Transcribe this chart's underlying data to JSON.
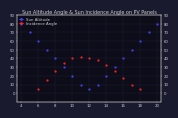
{
  "title": "Sun Altitude Angle & Sun Incidence Angle on PV Panels",
  "background_color": "#1a1a2e",
  "plot_bg_color": "#0d0d1a",
  "grid_color": "#444466",
  "altitude_color": "#4444ff",
  "incidence_color": "#ff2222",
  "text_color": "#cccccc",
  "ylim": [
    -10,
    90
  ],
  "xlim": [
    3.5,
    20.5
  ],
  "hours": [
    4,
    5,
    6,
    7,
    8,
    9,
    10,
    11,
    12,
    13,
    14,
    15,
    16,
    17,
    18,
    19,
    20
  ],
  "altitude_values": [
    80,
    70,
    60,
    50,
    40,
    30,
    20,
    10,
    5,
    10,
    20,
    30,
    40,
    50,
    60,
    70,
    80
  ],
  "incidence_values": [
    null,
    null,
    5,
    15,
    25,
    35,
    40,
    42,
    40,
    38,
    32,
    25,
    18,
    10,
    5,
    null,
    null
  ],
  "xtick_positions": [
    4,
    6,
    8,
    10,
    12,
    14,
    16,
    18,
    20
  ],
  "xtick_labels": [
    "4",
    "6",
    "8",
    "10",
    "12",
    "14",
    "16",
    "18",
    "20"
  ],
  "ytick_left": [
    0,
    10,
    20,
    30,
    40,
    50,
    60,
    70,
    80,
    90
  ],
  "ytick_right": [
    0,
    10,
    20,
    30,
    40,
    50,
    60,
    70,
    80,
    90
  ],
  "title_fontsize": 3.5,
  "tick_fontsize": 2.8,
  "legend_fontsize": 2.8,
  "marker_size": 1.2
}
